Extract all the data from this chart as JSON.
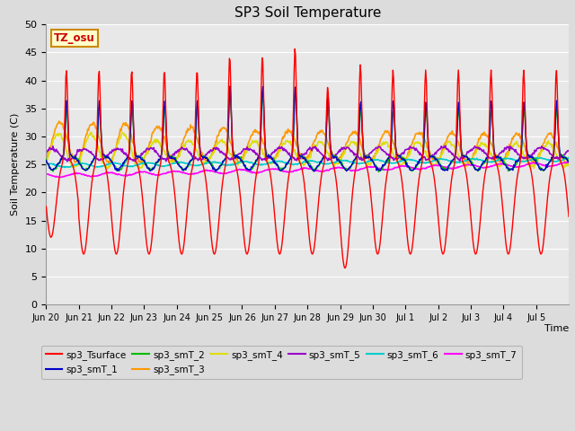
{
  "title": "SP3 Soil Temperature",
  "ylabel": "Soil Temperature (C)",
  "xlabel": "Time",
  "tz_label": "TZ_osu",
  "ylim": [
    0,
    50
  ],
  "yticks": [
    0,
    5,
    10,
    15,
    20,
    25,
    30,
    35,
    40,
    45,
    50
  ],
  "x_tick_labels": [
    "Jun 20",
    "Jun 21",
    "Jun 22",
    "Jun 23",
    "Jun 24",
    "Jun 25",
    "Jun 26",
    "Jun 27",
    "Jun 28",
    "Jun 29",
    "Jun 30",
    "Jul 1",
    "Jul 2",
    "Jul 3",
    "Jul 4",
    "Jul 5"
  ],
  "background_color": "#dcdcdc",
  "plot_bg_color": "#e8e8e8",
  "series_colors": {
    "sp3_Tsurface": "#ff0000",
    "sp3_smT_1": "#0000cc",
    "sp3_smT_2": "#00bb00",
    "sp3_smT_3": "#ff9900",
    "sp3_smT_4": "#dddd00",
    "sp3_smT_5": "#9900cc",
    "sp3_smT_6": "#00cccc",
    "sp3_smT_7": "#ff00ff"
  },
  "legend_entries": [
    "sp3_Tsurface",
    "sp3_smT_1",
    "sp3_smT_2",
    "sp3_smT_3",
    "sp3_smT_4",
    "sp3_smT_5",
    "sp3_smT_6",
    "sp3_smT_7"
  ]
}
